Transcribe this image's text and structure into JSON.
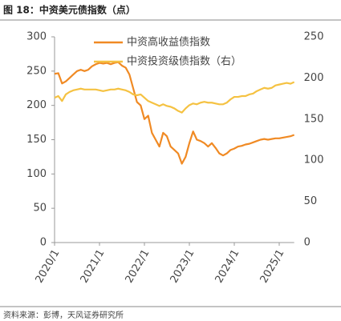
{
  "chart_data": {
    "type": "line",
    "title": "图 18：中资美元债指数（点）",
    "source": "资料来源：彭博，天风证券研究所",
    "categories": [
      "2020/1",
      null,
      null,
      null,
      null,
      null,
      null,
      null,
      null,
      null,
      null,
      null,
      "2021/1",
      null,
      null,
      null,
      null,
      null,
      null,
      null,
      null,
      null,
      null,
      null,
      "2022/1",
      null,
      null,
      null,
      null,
      null,
      null,
      null,
      null,
      null,
      null,
      null,
      "2023/1",
      null,
      null,
      null,
      null,
      null,
      null,
      null,
      null,
      null,
      null,
      null,
      "2024/1",
      null,
      null,
      null,
      null,
      null,
      null,
      null,
      null,
      null,
      null,
      null,
      "2025/1",
      null,
      null,
      null,
      null
    ],
    "series": [
      {
        "name": "中资高收益债指数",
        "color": "#f08a24",
        "axis": "y",
        "values": [
          246,
          247,
          232,
          235,
          240,
          245,
          250,
          252,
          250,
          252,
          257,
          260,
          262,
          261,
          262,
          260,
          262,
          263,
          258,
          255,
          245,
          225,
          205,
          200,
          180,
          185,
          160,
          150,
          140,
          160,
          155,
          140,
          135,
          130,
          115,
          125,
          145,
          162,
          150,
          148,
          145,
          140,
          145,
          138,
          130,
          127,
          130,
          135,
          137,
          140,
          141,
          143,
          144,
          146,
          148,
          150,
          151,
          150,
          151,
          152,
          152,
          153,
          154,
          155,
          157
        ]
      },
      {
        "name": "中资投资级债指数（右）",
        "color": "#f5c242",
        "axis": "y2",
        "values": [
          176,
          178,
          172,
          180,
          183,
          185,
          186,
          187,
          186,
          186,
          186,
          186,
          185,
          184,
          185,
          186,
          186,
          187,
          186,
          185,
          183,
          180,
          179,
          180,
          176,
          172,
          170,
          168,
          166,
          168,
          166,
          165,
          163,
          160,
          158,
          163,
          167,
          169,
          168,
          170,
          171,
          170,
          170,
          169,
          168,
          168,
          170,
          174,
          177,
          177,
          178,
          178,
          180,
          181,
          184,
          186,
          188,
          187,
          188,
          191,
          192,
          193,
          194,
          193,
          195
        ]
      }
    ],
    "ylim": [
      0,
      300
    ],
    "yticks": [
      0,
      50,
      100,
      150,
      200,
      250,
      300
    ],
    "y2lim": [
      0,
      250
    ],
    "y2ticks": [
      0,
      50,
      100,
      150,
      200,
      250
    ],
    "legend": "top",
    "grid": false
  }
}
